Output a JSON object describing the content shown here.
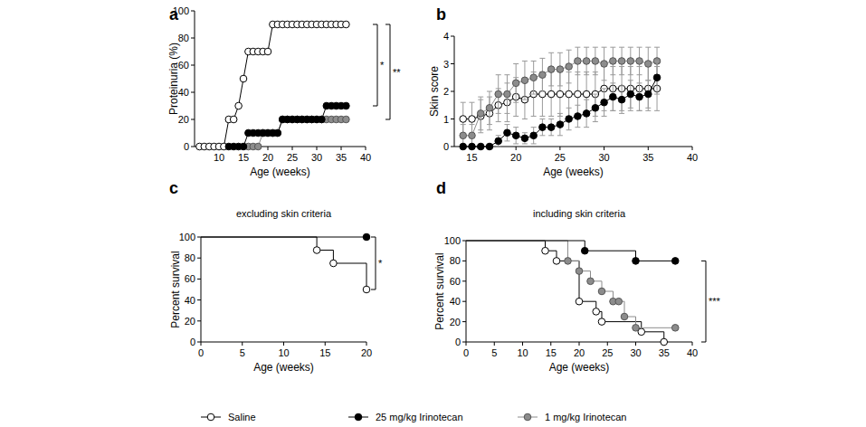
{
  "chart_data": [
    {
      "panel": "a",
      "type": "line",
      "x_label": "Age (weeks)",
      "y_label": "Proteinuria (%)",
      "xlim": [
        5,
        40
      ],
      "ylim": [
        0,
        100
      ],
      "xticks": [
        10,
        15,
        20,
        25,
        30,
        35,
        40
      ],
      "yticks": [
        0,
        20,
        40,
        60,
        80,
        100
      ],
      "marker": "circle",
      "x": [
        6,
        7,
        8,
        9,
        10,
        11,
        12,
        13,
        14,
        15,
        16,
        17,
        18,
        19,
        20,
        21,
        22,
        23,
        24,
        25,
        26,
        27,
        28,
        29,
        30,
        31,
        32,
        33,
        34,
        35,
        36
      ],
      "series": [
        {
          "name": "Saline",
          "color": "#ffffff",
          "values": [
            0,
            0,
            0,
            0,
            0,
            0,
            20,
            20,
            30,
            50,
            70,
            70,
            70,
            70,
            70,
            90,
            90,
            90,
            90,
            90,
            90,
            90,
            90,
            90,
            90,
            90,
            90,
            90,
            90,
            90,
            90
          ]
        },
        {
          "name": "1 mg/kg Irinotecan",
          "color": "#8c8c8c",
          "values": [
            null,
            null,
            null,
            null,
            null,
            null,
            null,
            null,
            null,
            null,
            0,
            0,
            0,
            10,
            10,
            10,
            10,
            20,
            20,
            20,
            20,
            20,
            20,
            20,
            20,
            20,
            20,
            20,
            20,
            20,
            20
          ]
        },
        {
          "name": "25 mg/kg Irinotecan",
          "color": "#000000",
          "values": [
            null,
            null,
            null,
            null,
            null,
            null,
            0,
            0,
            0,
            0,
            10,
            10,
            10,
            10,
            10,
            10,
            10,
            20,
            20,
            20,
            20,
            20,
            20,
            20,
            20,
            20,
            30,
            30,
            30,
            30,
            30
          ]
        }
      ],
      "annotations": [
        {
          "text": "*",
          "from": 90,
          "to": 30
        },
        {
          "text": "**",
          "from": 90,
          "to": 20
        }
      ]
    },
    {
      "panel": "b",
      "type": "line",
      "x_label": "Age (weeks)",
      "y_label": "Skin score",
      "xlim": [
        13,
        40
      ],
      "ylim": [
        0,
        4
      ],
      "xticks": [
        15,
        20,
        25,
        30,
        35,
        40
      ],
      "yticks": [
        0,
        1,
        2,
        3,
        4
      ],
      "marker": "circle",
      "x": [
        14,
        15,
        16,
        17,
        18,
        19,
        20,
        21,
        22,
        23,
        24,
        25,
        26,
        27,
        28,
        29,
        30,
        31,
        32,
        33,
        34,
        35,
        36
      ],
      "series": [
        {
          "name": "Saline",
          "color": "#ffffff",
          "values": [
            1.0,
            1.0,
            1.1,
            1.2,
            1.5,
            1.6,
            1.8,
            1.7,
            1.9,
            1.9,
            1.9,
            1.9,
            1.9,
            1.9,
            1.9,
            1.9,
            2.1,
            2.1,
            2.1,
            2.1,
            2.1,
            2.1,
            2.1
          ],
          "errors": [
            0.6,
            0.6,
            0.6,
            0.6,
            0.6,
            0.7,
            0.7,
            0.7,
            0.8,
            0.8,
            0.8,
            0.8,
            0.8,
            0.8,
            0.8,
            0.8,
            0.8,
            0.8,
            0.8,
            0.8,
            0.8,
            0.8,
            0.8
          ]
        },
        {
          "name": "1 mg/kg Irinotecan",
          "color": "#8c8c8c",
          "values": [
            0.4,
            0.4,
            1.2,
            1.4,
            1.9,
            1.9,
            2.3,
            2.4,
            2.5,
            2.6,
            2.8,
            2.8,
            2.9,
            3.1,
            3.1,
            3.1,
            3.0,
            3.1,
            3.1,
            3.1,
            3.1,
            3.0,
            3.1
          ],
          "errors": [
            0.4,
            0.4,
            0.6,
            0.6,
            0.7,
            0.7,
            0.7,
            0.7,
            0.6,
            0.6,
            0.6,
            0.6,
            0.6,
            0.5,
            0.5,
            0.5,
            0.6,
            0.5,
            0.5,
            0.5,
            0.5,
            0.6,
            0.5
          ]
        },
        {
          "name": "25 mg/kg Irinotecan",
          "color": "#000000",
          "values": [
            0,
            0,
            0,
            0,
            0.2,
            0.5,
            0.4,
            0.3,
            0.4,
            0.7,
            0.7,
            0.8,
            1.0,
            1.1,
            1.2,
            1.4,
            1.6,
            1.8,
            1.7,
            1.9,
            1.8,
            1.9,
            2.5
          ],
          "errors": [
            0,
            0,
            0,
            0,
            0.2,
            0.3,
            0.3,
            0.2,
            0.3,
            0.3,
            0.3,
            0.4,
            0.4,
            0.4,
            0.5,
            0.5,
            0.5,
            0.5,
            0.5,
            0.5,
            0.5,
            0.5,
            0.6
          ]
        }
      ]
    },
    {
      "panel": "c",
      "type": "step",
      "title": "excluding skin criteria",
      "x_label": "Age (weeks)",
      "y_label": "Percent survival",
      "xlim": [
        0,
        20
      ],
      "ylim": [
        0,
        100
      ],
      "xticks": [
        0,
        5,
        10,
        15,
        20
      ],
      "yticks": [
        0,
        20,
        40,
        60,
        80,
        100
      ],
      "marker": "circle",
      "series": [
        {
          "name": "Saline",
          "color": "#ffffff",
          "x": [
            0,
            14,
            16,
            20
          ],
          "values": [
            100,
            87.5,
            75,
            50
          ]
        },
        {
          "name": "25 mg/kg Irinotecan",
          "color": "#000000",
          "x": [
            0,
            20
          ],
          "values": [
            100,
            100
          ]
        }
      ],
      "annotations": [
        {
          "text": "*",
          "from": 100,
          "to": 50
        }
      ]
    },
    {
      "panel": "d",
      "type": "step",
      "title": "including skin criteria",
      "x_label": "Age (weeks)",
      "y_label": "Percent survival",
      "xlim": [
        0,
        40
      ],
      "ylim": [
        0,
        100
      ],
      "xticks": [
        0,
        5,
        10,
        15,
        20,
        25,
        30,
        35,
        40
      ],
      "yticks": [
        0,
        20,
        40,
        60,
        80,
        100
      ],
      "marker": "circle",
      "series": [
        {
          "name": "Saline",
          "color": "#ffffff",
          "x": [
            0,
            14,
            16,
            20,
            23,
            24,
            31,
            35
          ],
          "values": [
            100,
            90,
            80,
            40,
            30,
            20,
            10,
            0
          ]
        },
        {
          "name": "1 mg/kg Irinotecan",
          "color": "#8c8c8c",
          "x": [
            0,
            18,
            20,
            22,
            24,
            26,
            27,
            28,
            30,
            37
          ],
          "values": [
            100,
            80,
            70,
            60,
            50,
            40,
            40,
            25,
            14,
            14
          ]
        },
        {
          "name": "25 mg/kg Irinotecan",
          "color": "#000000",
          "x": [
            0,
            21,
            30,
            37
          ],
          "values": [
            100,
            90,
            80,
            80
          ]
        }
      ],
      "annotations": [
        {
          "text": "***",
          "from": 80,
          "to": 0
        }
      ]
    }
  ]
}
